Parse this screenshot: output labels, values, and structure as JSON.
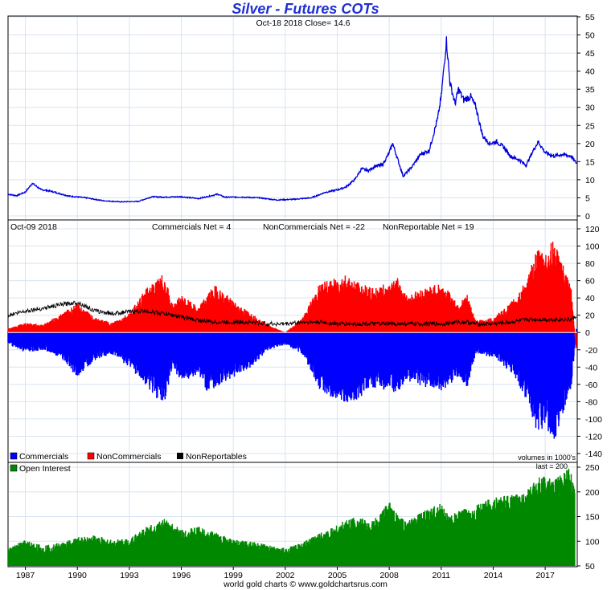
{
  "header": {
    "title": "Silver - Futures COTs",
    "subtitle": "Oct-18  2018   Close= 14.6"
  },
  "cot_header": {
    "date": "Oct-09  2018",
    "commercials": "Commercials Net = 4",
    "noncommercials": "NonCommercials Net = -22",
    "nonreportables": "NonReportable Net = 19"
  },
  "legend": {
    "commercials": "Commercials",
    "noncommercials": "NonCommercials",
    "nonreportables": "NonReportables",
    "units": "volumes in 1000's"
  },
  "oi_panel": {
    "legend": "Open Interest",
    "last": "last = 200"
  },
  "footer": {
    "credit": "world gold charts © www.goldchartsrus.com"
  },
  "colors": {
    "price": "#0000dd",
    "commercials": "#0000ff",
    "noncommercials": "#ff0000",
    "nonreportables": "#000000",
    "open_interest": "#008800",
    "grid": "#d8e4f0"
  },
  "chart_data": [
    {
      "type": "line",
      "title": "Silver - Futures COTs",
      "ylim": [
        0,
        55
      ],
      "yticks": [
        0,
        5,
        10,
        15,
        20,
        25,
        30,
        35,
        40,
        45,
        50,
        55
      ],
      "x": [
        1986.0,
        1986.5,
        1987.0,
        1987.4,
        1987.9,
        1988.5,
        1989.5,
        1990.5,
        1991.5,
        1992.5,
        1993.5,
        1994.3,
        1995.0,
        1996.0,
        1997.0,
        1998.1,
        1998.5,
        1999.5,
        2000.5,
        2001.5,
        2002.5,
        2003.5,
        2004.3,
        2005.0,
        2005.5,
        2006.0,
        2006.4,
        2006.8,
        2007.2,
        2007.6,
        2008.0,
        2008.2,
        2008.8,
        2009.3,
        2009.8,
        2010.3,
        2010.8,
        2011.0,
        2011.3,
        2011.5,
        2011.8,
        2012.0,
        2012.3,
        2012.7,
        2013.0,
        2013.4,
        2013.8,
        2014.2,
        2014.6,
        2015.0,
        2015.5,
        2015.9,
        2016.3,
        2016.6,
        2017.0,
        2017.5,
        2018.0,
        2018.5,
        2018.8
      ],
      "y": [
        6.0,
        5.6,
        6.6,
        9.0,
        7.3,
        6.8,
        5.5,
        5.0,
        4.2,
        3.9,
        4.0,
        5.3,
        5.2,
        5.3,
        4.8,
        6.0,
        5.2,
        5.2,
        5.0,
        4.4,
        4.6,
        5.0,
        6.5,
        7.2,
        8.0,
        10.0,
        13.0,
        12.5,
        13.8,
        14.0,
        17.5,
        20.0,
        11.0,
        13.5,
        17.0,
        18.0,
        27.0,
        33.0,
        48.5,
        37.0,
        31.0,
        35.0,
        32.0,
        33.0,
        30.0,
        22.0,
        20.0,
        20.5,
        19.0,
        16.5,
        15.5,
        14.0,
        18.0,
        20.5,
        17.5,
        16.5,
        17.0,
        16.5,
        14.6
      ]
    },
    {
      "type": "area",
      "ylim": [
        -140,
        120
      ],
      "yticks": [
        -140,
        -120,
        -100,
        -80,
        -60,
        -40,
        -20,
        0,
        20,
        40,
        60,
        80,
        100,
        120
      ],
      "x": [
        1986.0,
        1987.0,
        1988.0,
        1989.0,
        1990.0,
        1991.0,
        1992.0,
        1993.0,
        1994.0,
        1994.5,
        1995.0,
        1995.5,
        1996.0,
        1997.0,
        1997.5,
        1998.0,
        1999.0,
        2000.0,
        2001.0,
        2002.0,
        2003.0,
        2004.0,
        2005.0,
        2005.5,
        2006.0,
        2007.0,
        2008.0,
        2008.5,
        2009.0,
        2010.0,
        2011.0,
        2012.0,
        2012.5,
        2013.0,
        2014.0,
        2015.0,
        2016.0,
        2016.5,
        2017.0,
        2017.5,
        2018.0,
        2018.5,
        2018.8
      ],
      "series": [
        {
          "name": "Commercials",
          "values": [
            -12,
            -20,
            -18,
            -25,
            -45,
            -28,
            -22,
            -35,
            -55,
            -65,
            -72,
            -35,
            -50,
            -42,
            -60,
            -55,
            -45,
            -35,
            -18,
            -12,
            -22,
            -58,
            -70,
            -72,
            -70,
            -55,
            -60,
            -62,
            -48,
            -55,
            -60,
            -45,
            -55,
            -22,
            -25,
            -40,
            -70,
            -100,
            -95,
            -110,
            -85,
            -60,
            4
          ]
        },
        {
          "name": "NonCommercials",
          "values": [
            4,
            10,
            8,
            18,
            30,
            15,
            10,
            20,
            45,
            52,
            60,
            28,
            38,
            25,
            40,
            48,
            32,
            20,
            8,
            0,
            15,
            50,
            55,
            60,
            52,
            45,
            50,
            55,
            38,
            45,
            50,
            30,
            38,
            12,
            15,
            30,
            55,
            85,
            80,
            95,
            70,
            45,
            -22
          ]
        },
        {
          "name": "NonReportables",
          "values": [
            20,
            25,
            28,
            32,
            35,
            25,
            22,
            24,
            25,
            23,
            22,
            20,
            18,
            14,
            13,
            12,
            12,
            12,
            10,
            10,
            12,
            12,
            10,
            10,
            10,
            10,
            10,
            10,
            10,
            10,
            10,
            12,
            12,
            10,
            10,
            12,
            15,
            15,
            15,
            15,
            15,
            15,
            19
          ]
        }
      ]
    },
    {
      "type": "area",
      "ylim": [
        50,
        250
      ],
      "yticks": [
        50,
        100,
        150,
        200,
        250
      ],
      "x": [
        1986.0,
        1987.0,
        1988.0,
        1989.0,
        1990.0,
        1991.0,
        1992.0,
        1993.0,
        1994.0,
        1995.0,
        1995.5,
        1996.0,
        1997.0,
        1998.0,
        1999.0,
        2000.0,
        2001.0,
        2002.0,
        2003.0,
        2004.0,
        2004.5,
        2005.0,
        2006.0,
        2007.0,
        2007.5,
        2008.0,
        2008.3,
        2009.0,
        2010.0,
        2011.0,
        2011.5,
        2012.0,
        2013.0,
        2014.0,
        2015.0,
        2016.0,
        2016.5,
        2017.0,
        2017.5,
        2018.0,
        2018.3,
        2018.7
      ],
      "series": [
        {
          "name": "Open Interest",
          "values": [
            80,
            95,
            85,
            90,
            100,
            105,
            95,
            100,
            120,
            135,
            125,
            115,
            120,
            110,
            95,
            95,
            85,
            80,
            90,
            110,
            115,
            125,
            140,
            130,
            145,
            170,
            150,
            130,
            150,
            165,
            140,
            150,
            160,
            175,
            180,
            190,
            210,
            220,
            205,
            225,
            240,
            200
          ]
        }
      ]
    }
  ],
  "x_axis": {
    "labels": [
      "1987",
      "1990",
      "1993",
      "1996",
      "1999",
      "2002",
      "2005",
      "2008",
      "2011",
      "2014",
      "2017"
    ],
    "ticks": [
      1987,
      1990,
      1993,
      1996,
      1999,
      2002,
      2005,
      2008,
      2011,
      2014,
      2017
    ]
  }
}
